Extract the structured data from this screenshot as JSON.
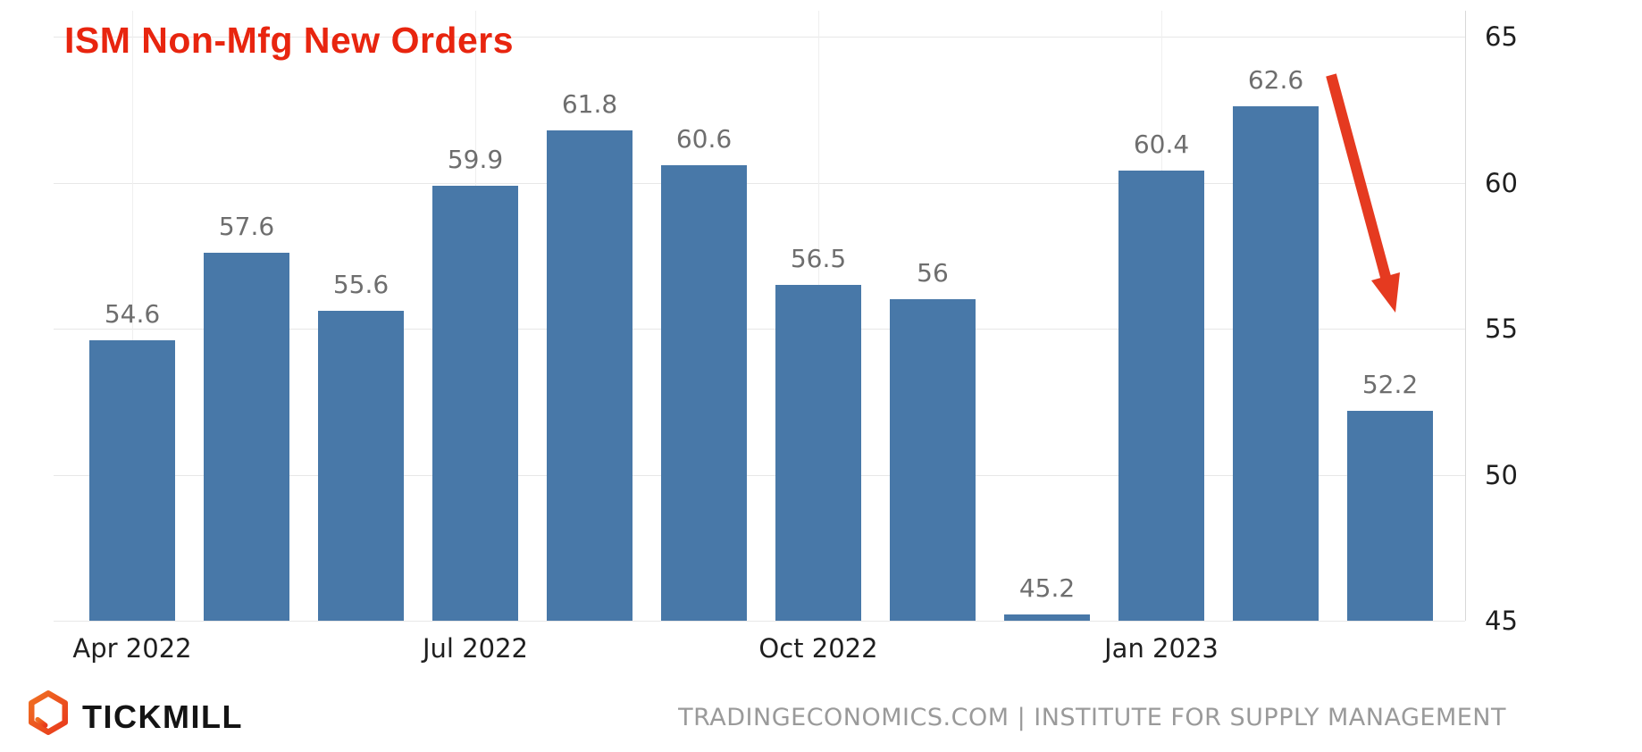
{
  "chart_data": {
    "type": "bar",
    "title": "ISM Non-Mfg New Orders",
    "categories": [
      "Apr 2022",
      "",
      "",
      "Jul 2022",
      "",
      "",
      "Oct 2022",
      "",
      "",
      "Jan 2023",
      "",
      ""
    ],
    "visible_x_labels": [
      "Apr 2022",
      "Jul 2022",
      "Oct 2022",
      "Jan 2023"
    ],
    "values": [
      54.6,
      57.6,
      55.6,
      59.9,
      61.8,
      60.6,
      56.5,
      56,
      45.2,
      60.4,
      62.6,
      52.2
    ],
    "value_labels": [
      "54.6",
      "57.6",
      "55.6",
      "59.9",
      "61.8",
      "60.6",
      "56.5",
      "56",
      "45.2",
      "60.4",
      "62.6",
      "52.2"
    ],
    "xlabel": "",
    "ylabel": "",
    "ylim": [
      45,
      65
    ],
    "yticks": [
      45,
      50,
      55,
      60,
      65
    ],
    "y_axis_position": "right",
    "grid": true,
    "legend": "none",
    "annotation": {
      "type": "arrow-down",
      "points_to_value": 52.2
    }
  },
  "colors": {
    "title_red": "#e8250f",
    "arrow_red": "#e53a20",
    "bar_blue": "#4878a8",
    "grid": "#e7e7e7",
    "axis_text": "#1f1f1f",
    "value_label": "#6e6e6e",
    "attribution": "#9a9a9a",
    "logo_red": "#e8391c",
    "logo_orange": "#f07022"
  },
  "footer": {
    "brand": "TICKMILL",
    "attribution": "TRADINGECONOMICS.COM | INSTITUTE FOR SUPPLY MANAGEMENT"
  }
}
